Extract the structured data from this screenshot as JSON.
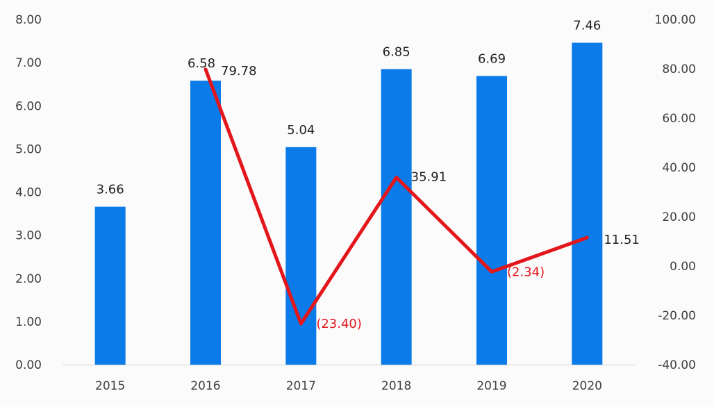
{
  "chart_data": {
    "type": "bar+line",
    "categories": [
      "2015",
      "2016",
      "2017",
      "2018",
      "2019",
      "2020"
    ],
    "series": [
      {
        "type": "bar",
        "axis": "left",
        "values": [
          3.66,
          6.58,
          5.04,
          6.85,
          6.69,
          7.46
        ],
        "labels": [
          "3.66",
          "6.58",
          "5.04",
          "6.85",
          "6.69",
          "7.46"
        ],
        "color": "#0a7be8"
      },
      {
        "type": "line",
        "axis": "right",
        "values": [
          null,
          79.78,
          -23.4,
          35.91,
          -2.34,
          11.51
        ],
        "labels": [
          "",
          "79.78",
          "(23.40)",
          "35.91",
          "(2.34)",
          "11.51"
        ],
        "color": "#e3161b"
      }
    ],
    "y_left": {
      "min": 0,
      "max": 8,
      "ticks": [
        "0.00",
        "1.00",
        "2.00",
        "3.00",
        "4.00",
        "5.00",
        "6.00",
        "7.00",
        "8.00"
      ]
    },
    "y_right": {
      "min": -40,
      "max": 100,
      "ticks": [
        "-40.00",
        "-20.00",
        "0.00",
        "20.00",
        "40.00",
        "60.00",
        "80.00",
        "100.00"
      ]
    },
    "negative_label_color": "#e3161b",
    "positive_label_color": "#222222",
    "grid": false,
    "legend": "none"
  }
}
